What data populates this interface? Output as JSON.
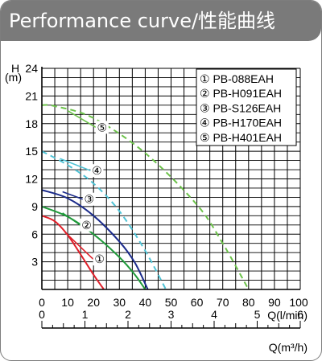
{
  "header": {
    "title": "Performance curve/性能曲线"
  },
  "chart_data": {
    "type": "line",
    "title": "Performance curve/性能曲线",
    "ylabel": "H",
    "yunit": "(m)",
    "xlabel": "Q(l/min)",
    "x2label": "Q(m³/h)",
    "xlim": [
      0,
      100
    ],
    "ylim": [
      0,
      24
    ],
    "x2lim": [
      0,
      6
    ],
    "xticks": [
      "0",
      "10",
      "20",
      "30",
      "40",
      "50",
      "60",
      "70",
      "80",
      "90",
      "100"
    ],
    "yticks": [
      "3",
      "6",
      "9",
      "12",
      "15",
      "18",
      "21",
      "24"
    ],
    "x2ticks": [
      "0",
      "1",
      "2",
      "3",
      "4",
      "5",
      "6"
    ],
    "grid": true,
    "legend_position": "top-right",
    "series": [
      {
        "marker": "①",
        "name": "PB-088EAH",
        "color": "#e0202a",
        "dash": false,
        "x": [
          0,
          5,
          10,
          15,
          20,
          24
        ],
        "y": [
          8,
          7.4,
          5.9,
          3.8,
          1.6,
          0
        ]
      },
      {
        "marker": "②",
        "name": "PB-H091EAH",
        "color": "#1f9a3a",
        "dash": false,
        "x": [
          0,
          10,
          20,
          30,
          36,
          40
        ],
        "y": [
          9,
          7.9,
          6.0,
          3.5,
          1.6,
          0
        ]
      },
      {
        "marker": "③",
        "name": "PB-S126EAH",
        "color": "#1a2a8a",
        "dash": false,
        "x": [
          0,
          10,
          20,
          30,
          36,
          41
        ],
        "y": [
          10.8,
          9.9,
          8.0,
          5.2,
          2.9,
          0
        ]
      },
      {
        "marker": "④",
        "name": "PB-H170EAH",
        "color": "#4fc3d6",
        "dash": true,
        "x": [
          0,
          10,
          20,
          30,
          40,
          48
        ],
        "y": [
          15,
          13.5,
          11.5,
          8.5,
          4.2,
          0
        ]
      },
      {
        "marker": "⑤",
        "name": "PB-H401EAH",
        "color": "#6cc24a",
        "dash": true,
        "x": [
          0,
          5,
          20,
          40,
          60,
          70,
          80
        ],
        "y": [
          20,
          19.9,
          18.6,
          14.8,
          9.2,
          5.0,
          0
        ]
      }
    ]
  }
}
